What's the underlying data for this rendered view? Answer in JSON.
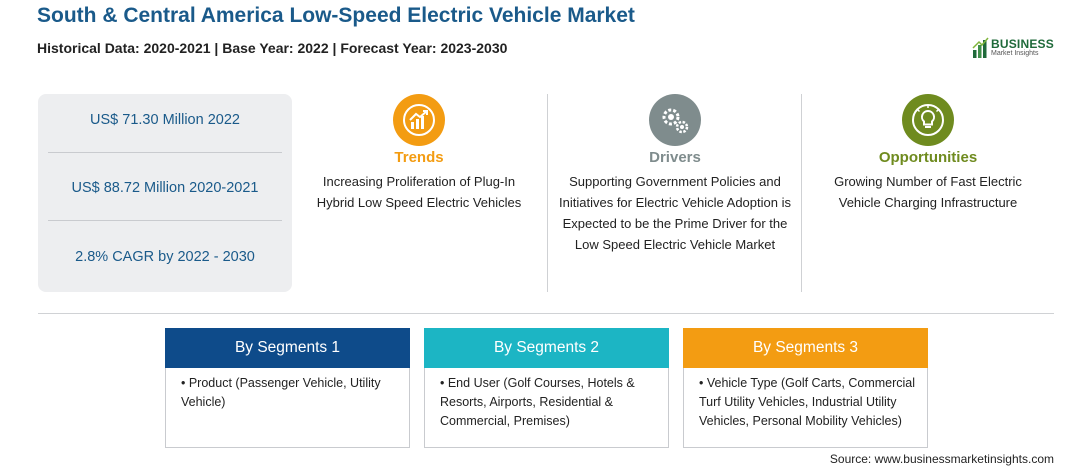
{
  "header": {
    "title": "South & Central America Low-Speed Electric Vehicle Market",
    "subtitle": "Historical Data: 2020-2021 | Base Year: 2022 | Forecast Year: 2023-2030"
  },
  "logo": {
    "word": "BUSINESS",
    "sub": "Market Insights"
  },
  "stats": [
    "US$ 71.30 Million 2022",
    "US$ 88.72 Million 2020-2021",
    "2.8% CAGR by 2022 - 2030"
  ],
  "columns": {
    "trends": {
      "title": "Trends",
      "color": "#f39c12",
      "icon": "rising-chart-icon",
      "text": "Increasing Proliferation of Plug-In Hybrid Low Speed Electric Vehicles"
    },
    "drivers": {
      "title": "Drivers",
      "color": "#7f8c8d",
      "icon": "gears-icon",
      "text": "Supporting Government Policies and Initiatives for Electric Vehicle Adoption is Expected to be the Prime Driver for the Low Speed Electric Vehicle Market"
    },
    "opportunities": {
      "title": "Opportunities",
      "color": "#6f8b1f",
      "icon": "lightbulb-icon",
      "text": "Growing Number of Fast Electric Vehicle Charging Infrastructure"
    }
  },
  "segments": [
    {
      "title": "By Segments 1",
      "color": "#0e4b8a",
      "text": "• Product (Passenger Vehicle, Utility Vehicle)"
    },
    {
      "title": "By Segments 2",
      "color": "#1cb5c4",
      "text": "• End User (Golf Courses, Hotels & Resorts, Airports, Residential & Commercial, Premises)"
    },
    {
      "title": "By Segments 3",
      "color": "#f39c12",
      "text": "• Vehicle Type (Golf Carts, Commercial Turf Utility Vehicles, Industrial Utility Vehicles, Personal Mobility Vehicles)"
    }
  ],
  "source": "Source: www.businessmarketinsights.com"
}
